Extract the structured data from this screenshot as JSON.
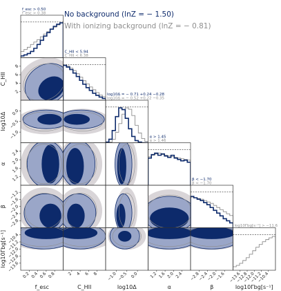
{
  "legend": {
    "no_bg": "No background (lnZ = − 1.50)",
    "with_bg": "With ionizing background (lnZ = − 0.81)"
  },
  "colors": {
    "no_bg": "#0d2a6b",
    "no_bg_fill_inner": "#0d2a6b",
    "no_bg_fill_outer": "#9aa6c8",
    "with_bg": "#8e8e8e",
    "with_bg_fill_inner": "#8c7f86",
    "with_bg_fill_outer": "#d9d5d8"
  },
  "params": [
    {
      "key": "fesc",
      "label": "f_esc",
      "ticks": [
        "0.2",
        "0.4",
        "0.6",
        "0.8"
      ]
    },
    {
      "key": "chii",
      "label": "C_HII",
      "ticks": [
        "2",
        "4",
        "6",
        "8"
      ]
    },
    {
      "key": "logdelta",
      "label": "log10Δ",
      "ticks": [
        "−1.0",
        "−0.5",
        "0.0"
      ]
    },
    {
      "key": "alpha",
      "label": "α",
      "ticks": [
        "1.2",
        "1.6",
        "2.0",
        "2.4"
      ]
    },
    {
      "key": "beta",
      "label": "β",
      "ticks": [
        "−2.8",
        "−2.4",
        "−2.0",
        "−1.6"
      ]
    },
    {
      "key": "loggamma",
      "label": "log10Γbg[s⁻¹]",
      "ticks": [
        "−13.6",
        "−12.8",
        "−12.0",
        "−11.2",
        "−10.4"
      ]
    }
  ],
  "y_ticks": {
    "chii": [
      "2",
      "4",
      "6",
      "8"
    ],
    "logdelta": [
      "−1.0",
      "−0.5",
      "0.0"
    ],
    "alpha": [
      "1.2",
      "1.6",
      "2.0",
      "2.4"
    ],
    "beta": [
      "−2.8",
      "−2.4",
      "−2.0",
      "−1.6",
      "−1.2"
    ],
    "loggamma": [
      "−13.6",
      "−12.8",
      "−12.0",
      "−11.2",
      "−10.4"
    ]
  },
  "annotations": [
    {
      "no_bg": "f_esc > 0.50",
      "with_bg": "f_esc > 0.38"
    },
    {
      "no_bg": "C_HII < 5.94",
      "with_bg": "C_HII < 6.38"
    },
    {
      "no_bg": "log10Δ = − 0.71 +0.24 −0.28",
      "with_bg": "log10Δ = − 0.52 +0.22 −0.35"
    },
    {
      "no_bg": "α > 1.45",
      "with_bg": "α > 1.46"
    },
    {
      "no_bg": "β < −1.70",
      "with_bg": "β < −1.70"
    },
    {
      "no_bg": "",
      "with_bg": "log10Γbg[s⁻¹] > −11.6"
    }
  ],
  "chart_data": {
    "type": "corner",
    "title": "",
    "series": [
      {
        "name": "No background (lnZ = − 1.50)",
        "color": "#0d2a6b"
      },
      {
        "name": "With ionizing background (lnZ = − 0.81)",
        "color": "#8e8e8e"
      }
    ],
    "ranges": {
      "fesc": [
        0.0,
        1.0
      ],
      "chii": [
        1.0,
        10.0
      ],
      "logdelta": [
        -1.2,
        0.3
      ],
      "alpha": [
        1.0,
        2.6
      ],
      "beta": [
        -3.0,
        -1.0
      ],
      "loggamma": [
        -14.0,
        -10.0
      ]
    },
    "marginals": {
      "fesc": {
        "no_bg": [
          0.05,
          0.08,
          0.12,
          0.18,
          0.27,
          0.38,
          0.5,
          0.62,
          0.72,
          0.82,
          0.9,
          0.96,
          1.0
        ],
        "with_bg": [
          0.18,
          0.24,
          0.3,
          0.38,
          0.45,
          0.52,
          0.6,
          0.68,
          0.75,
          0.82,
          0.88,
          0.94,
          1.0
        ]
      },
      "chii": {
        "no_bg": [
          1.0,
          0.95,
          0.88,
          0.78,
          0.68,
          0.57,
          0.46,
          0.36,
          0.28,
          0.2,
          0.14,
          0.09,
          0.05
        ],
        "with_bg": [
          1.0,
          0.98,
          0.92,
          0.85,
          0.76,
          0.66,
          0.56,
          0.47,
          0.38,
          0.3,
          0.22,
          0.15,
          0.1
        ]
      },
      "logdelta": {
        "no_bg": [
          0.02,
          0.1,
          0.35,
          0.75,
          1.0,
          0.95,
          0.7,
          0.4,
          0.18,
          0.06,
          0.02,
          0.0,
          0.0
        ],
        "with_bg": [
          0.0,
          0.02,
          0.1,
          0.3,
          0.55,
          0.82,
          1.0,
          0.96,
          0.78,
          0.5,
          0.28,
          0.12,
          0.04
        ]
      },
      "alpha": {
        "no_bg": [
          0.78,
          0.88,
          0.92,
          0.86,
          0.9,
          0.84,
          0.8,
          0.86,
          0.78,
          0.74,
          0.7,
          0.72,
          0.66
        ],
        "with_bg": [
          0.82,
          0.86,
          0.9,
          0.92,
          0.88,
          0.86,
          0.84,
          0.82,
          0.8,
          0.78,
          0.76,
          0.74,
          0.72
        ]
      },
      "beta": {
        "no_bg": [
          0.9,
          0.86,
          0.82,
          0.78,
          0.72,
          0.66,
          0.58,
          0.5,
          0.42,
          0.34,
          0.26,
          0.2,
          0.14
        ],
        "with_bg": [
          0.88,
          0.86,
          0.84,
          0.82,
          0.78,
          0.74,
          0.7,
          0.64,
          0.58,
          0.52,
          0.46,
          0.4,
          0.35
        ]
      },
      "loggamma": {
        "no_bg": [],
        "with_bg": [
          0.1,
          0.14,
          0.2,
          0.28,
          0.36,
          0.46,
          0.56,
          0.66,
          0.74,
          0.82,
          0.88,
          0.93,
          0.97
        ]
      }
    },
    "legend_position": "top",
    "grid": false
  }
}
